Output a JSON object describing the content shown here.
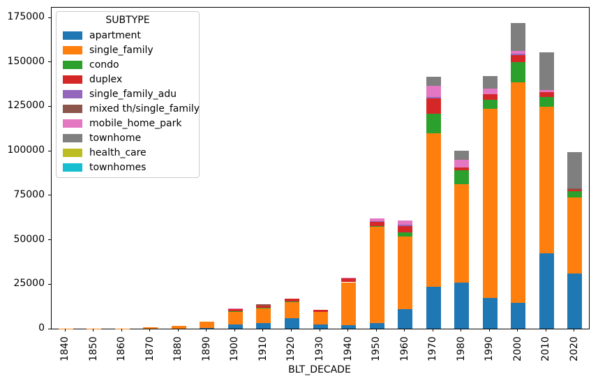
{
  "chart_data": {
    "type": "bar",
    "stacked": true,
    "title": "",
    "xlabel": "BLT_DECADE",
    "ylabel": "",
    "legend_title": "SUBTYPE",
    "legend_position": "upper-left",
    "grid": false,
    "ylim": [
      0,
      180500
    ],
    "y_ticks": [
      {
        "value": 0,
        "label": "0"
      },
      {
        "value": 25000,
        "label": "25000"
      },
      {
        "value": 50000,
        "label": "50000"
      },
      {
        "value": 75000,
        "label": "75000"
      },
      {
        "value": 100000,
        "label": "100000"
      },
      {
        "value": 125000,
        "label": "125000"
      },
      {
        "value": 150000,
        "label": "150000"
      },
      {
        "value": 175000,
        "label": "175000"
      }
    ],
    "categories": [
      "1840",
      "1850",
      "1860",
      "1870",
      "1880",
      "1890",
      "1900",
      "1910",
      "1920",
      "1930",
      "1940",
      "1950",
      "1960",
      "1970",
      "1980",
      "1990",
      "2000",
      "2010",
      "2020"
    ],
    "series": [
      {
        "name": "apartment",
        "color": "#1f77b4",
        "values": [
          0,
          0,
          0,
          0,
          0,
          400,
          2400,
          3000,
          6000,
          2400,
          2000,
          3000,
          10900,
          23500,
          25800,
          17400,
          14400,
          42500,
          31100
        ]
      },
      {
        "name": "single_family",
        "color": "#ff7f0e",
        "values": [
          50,
          100,
          200,
          700,
          1400,
          3700,
          7000,
          8300,
          8900,
          7200,
          24100,
          54200,
          41000,
          86400,
          55300,
          106200,
          124200,
          82400,
          42800
        ]
      },
      {
        "name": "condo",
        "color": "#2ca02c",
        "values": [
          0,
          0,
          0,
          0,
          0,
          0,
          300,
          400,
          500,
          0,
          0,
          500,
          2300,
          11100,
          7900,
          5200,
          11200,
          5300,
          3300
        ]
      },
      {
        "name": "duplex",
        "color": "#d62728",
        "values": [
          0,
          0,
          0,
          0,
          0,
          0,
          1100,
          1400,
          1500,
          1000,
          2400,
          2400,
          3500,
          8400,
          1800,
          3000,
          3900,
          3000,
          800
        ]
      },
      {
        "name": "single_family_adu",
        "color": "#9467bd",
        "values": [
          0,
          0,
          0,
          0,
          0,
          0,
          0,
          0,
          0,
          0,
          0,
          400,
          700,
          1000,
          0,
          0,
          900,
          0,
          0
        ]
      },
      {
        "name": "mixed th/single_family",
        "color": "#8c564b",
        "values": [
          0,
          0,
          0,
          0,
          0,
          0,
          0,
          500,
          0,
          0,
          0,
          0,
          0,
          0,
          0,
          0,
          0,
          0,
          700
        ]
      },
      {
        "name": "mobile_home_park",
        "color": "#e377c2",
        "values": [
          0,
          0,
          0,
          0,
          0,
          0,
          700,
          0,
          0,
          0,
          300,
          1600,
          2300,
          6300,
          4100,
          3300,
          1700,
          900,
          0
        ]
      },
      {
        "name": "townhome",
        "color": "#7f7f7f",
        "values": [
          0,
          0,
          0,
          0,
          0,
          0,
          0,
          0,
          0,
          0,
          0,
          0,
          0,
          4800,
          5300,
          6800,
          15700,
          21300,
          20700
        ]
      },
      {
        "name": "health_care",
        "color": "#bcbd22",
        "values": [
          0,
          0,
          0,
          0,
          0,
          0,
          0,
          0,
          0,
          0,
          0,
          0,
          0,
          0,
          0,
          0,
          0,
          0,
          0
        ]
      },
      {
        "name": "townhomes",
        "color": "#17becf",
        "values": [
          0,
          0,
          0,
          0,
          0,
          0,
          0,
          0,
          0,
          0,
          0,
          0,
          0,
          0,
          0,
          0,
          0,
          0,
          0
        ]
      }
    ]
  },
  "colors": {
    "background": "#ffffff",
    "spine": "#000000",
    "legend_border": "#cccccc",
    "text": "#000000"
  }
}
